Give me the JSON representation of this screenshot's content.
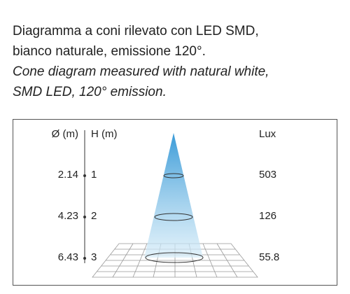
{
  "header": {
    "lines": [
      "Diagramma a coni rilevato con LED SMD,",
      "bianco naturale, emissione 120°.",
      "Cone diagram measured with natural white,",
      "SMD LED, 120° emission."
    ]
  },
  "table": {
    "columns": [
      "Ø (m)",
      "H (m)",
      "Lux"
    ],
    "rows": [
      [
        "2.14",
        "1",
        "503"
      ],
      [
        "4.23",
        "2",
        "126"
      ],
      [
        "6.43",
        "3",
        "55.8"
      ]
    ]
  }
}
